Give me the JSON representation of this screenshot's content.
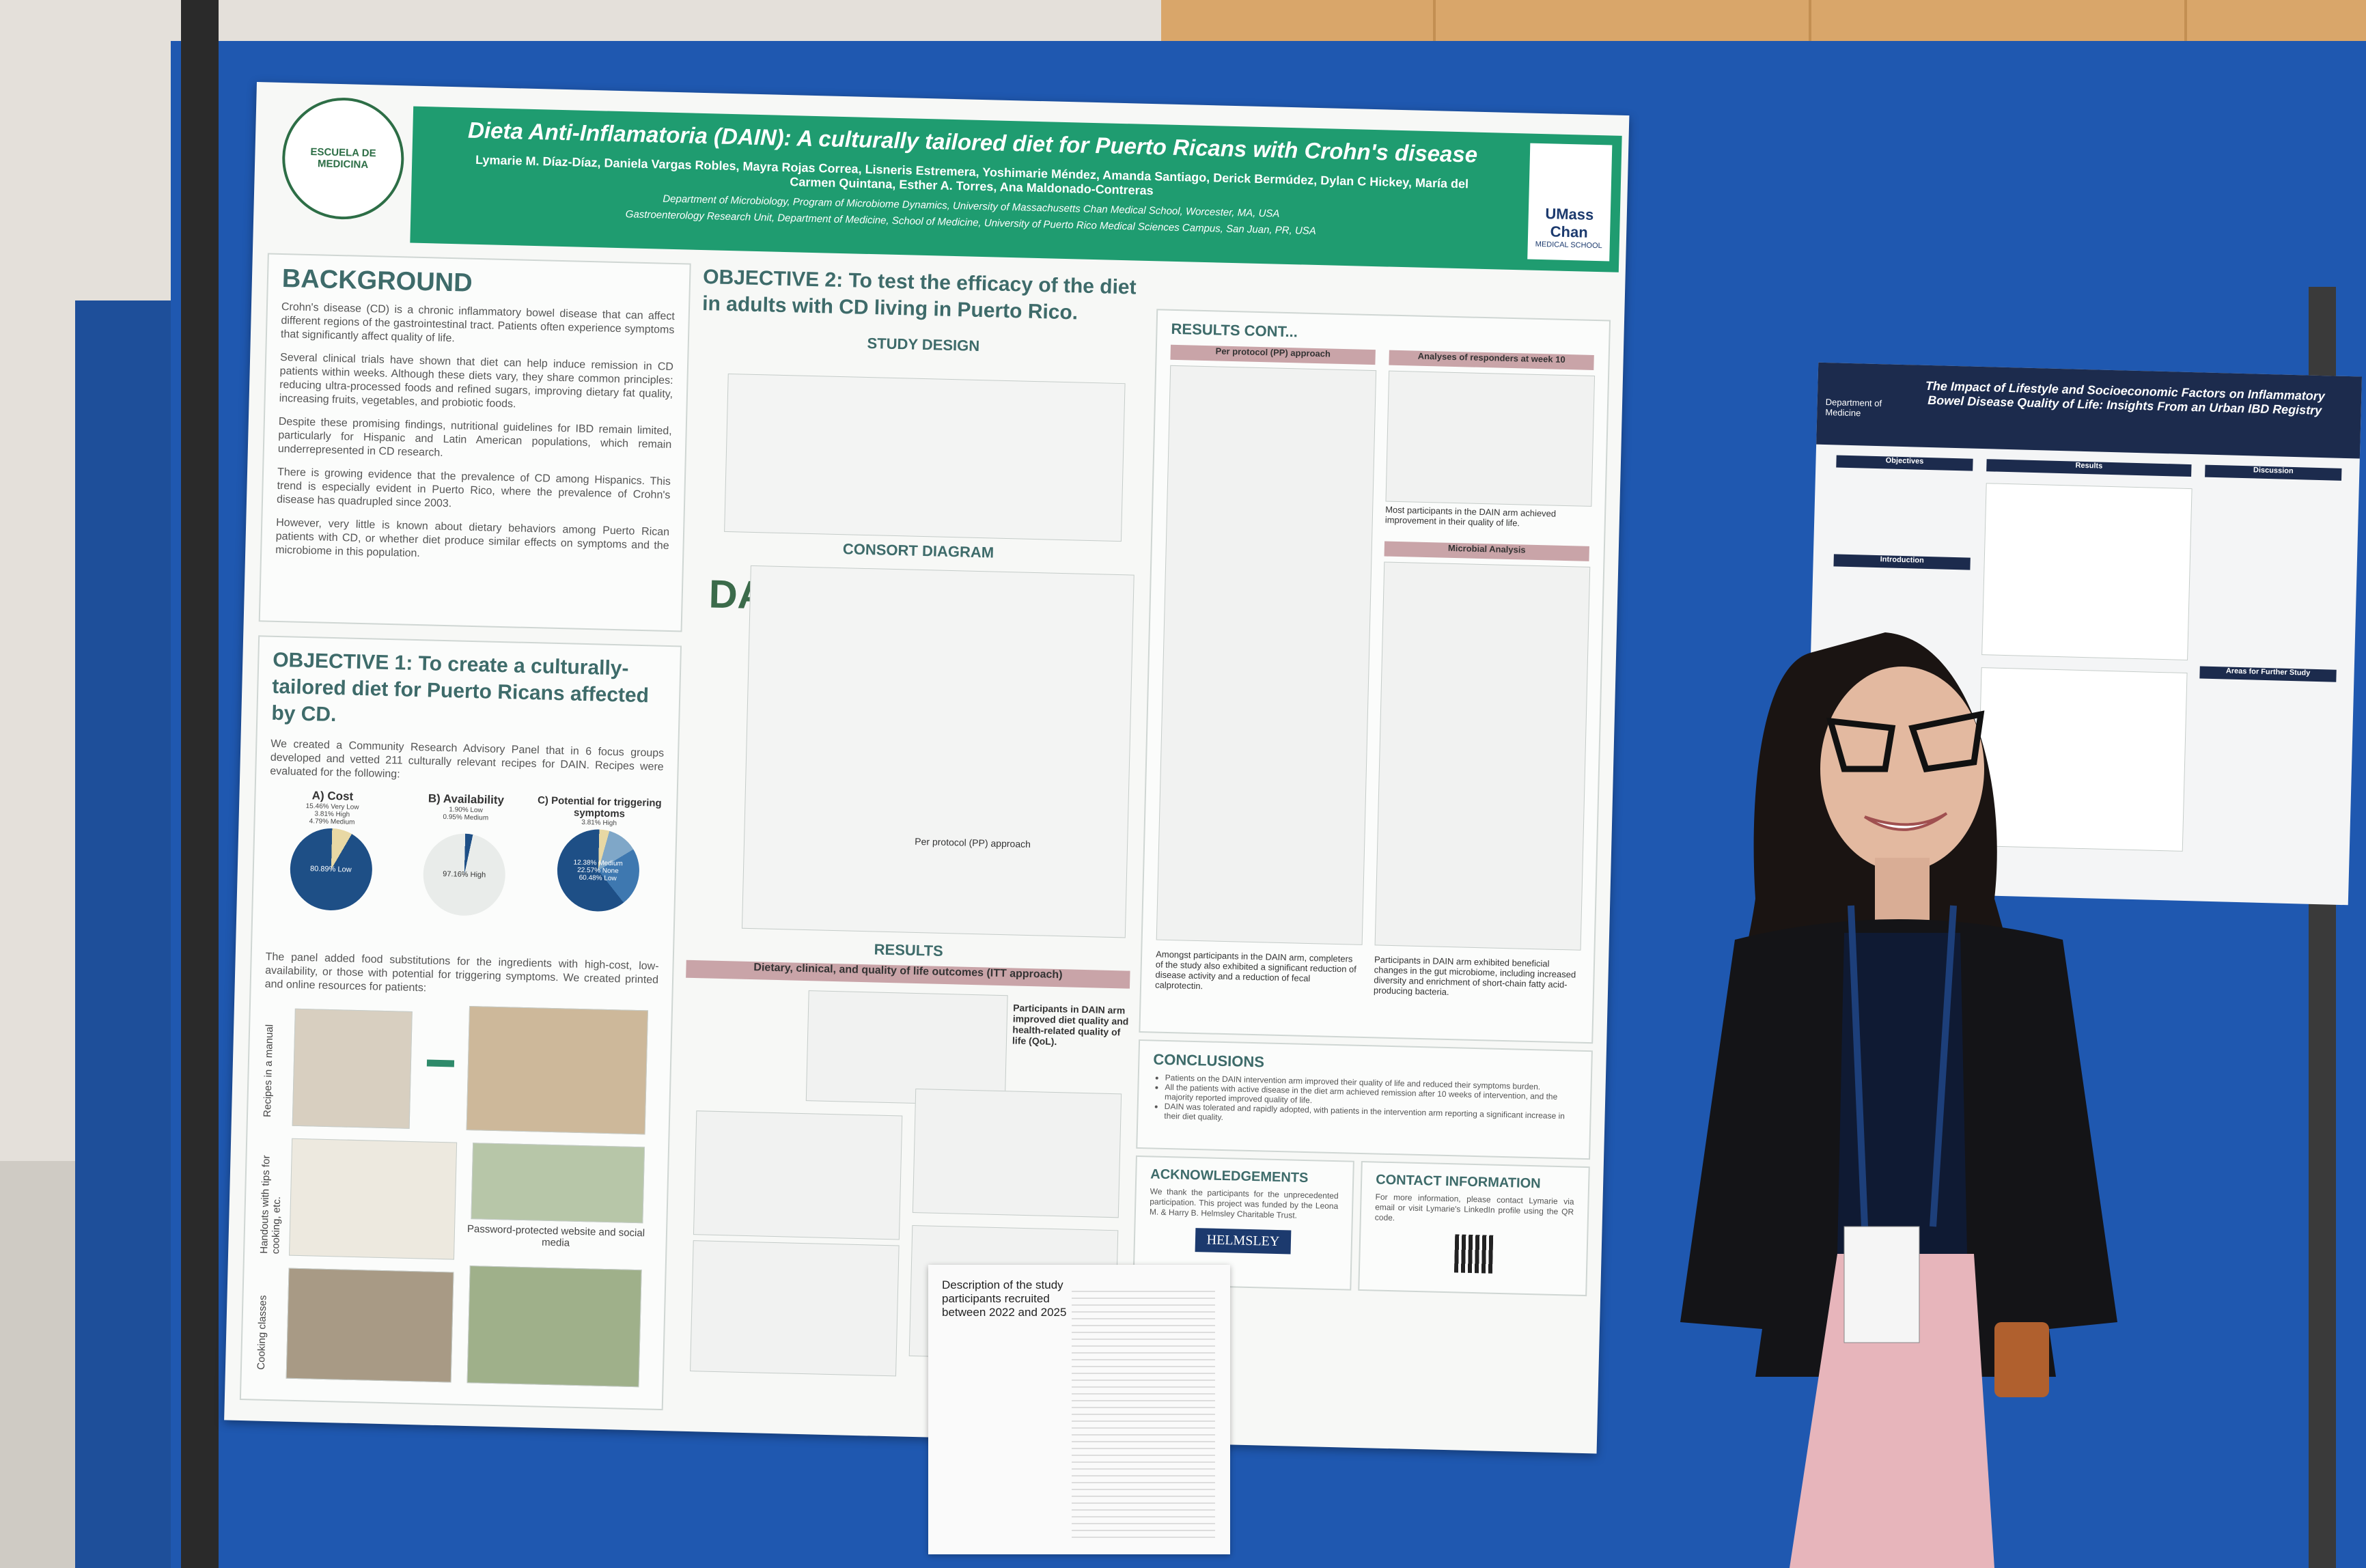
{
  "main_poster": {
    "title": "Dieta Anti-Inflamatoria (DAIN): A culturally tailored diet for Puerto Ricans with Crohn's disease",
    "authors": "Lymarie M. Díaz-Díaz, Daniela Vargas Robles, Mayra Rojas Correa, Lisneris Estremera, Yoshimarie Méndez, Amanda Santiago, Derick Bermúdez, Dylan C Hickey, María del Carmen Quintana, Esther A. Torres, Ana Maldonado-Contreras",
    "affiliations": [
      "Department of Microbiology, Program of Microbiome Dynamics, University of Massachusetts Chan Medical School, Worcester, MA, USA",
      "Gastroenterology Research Unit, Department of Medicine, School of Medicine, University of Puerto Rico Medical Sciences Campus, San Juan, PR, USA"
    ],
    "logo_left": "ESCUELA DE MEDICINA",
    "logo_right": "UMass Chan",
    "logo_right_sub": "MEDICAL SCHOOL",
    "background": {
      "heading": "BACKGROUND",
      "paragraphs": [
        "Crohn's disease (CD) is a chronic inflammatory bowel disease that can affect different regions of the gastrointestinal tract. Patients often experience symptoms that significantly affect quality of life.",
        "Several clinical trials have shown that diet can help induce remission in CD patients within weeks. Although these diets vary, they share common principles: reducing ultra-processed foods and refined sugars, improving dietary fat quality, increasing fruits, vegetables, and probiotic foods.",
        "Despite these promising findings, nutritional guidelines for IBD remain limited, particularly for Hispanic and Latin American populations, which remain underrepresented in CD research.",
        "There is growing evidence that the prevalence of CD among Hispanics. This trend is especially evident in Puerto Rico, where the prevalence of Crohn's disease has quadrupled since 2003.",
        "However, very little is known about dietary behaviors among Puerto Rican patients with CD, or whether diet produce similar effects on symptoms and the microbiome in this population."
      ]
    },
    "objective1": {
      "heading": "OBJECTIVE 1: To create a culturally-tailored diet for Puerto Ricans affected by CD.",
      "text": "We created a Community Research Advisory Panel that in 6 focus groups developed and vetted 211 culturally relevant recipes for DAIN. Recipes were evaluated for the following:",
      "pies": [
        {
          "label": "A) Cost",
          "slices": [
            "15.46% Very Low",
            "3.81% High",
            "4.79% Medium",
            "80.89% Low"
          ]
        },
        {
          "label": "B) Availability",
          "slices": [
            "1.90% Low",
            "0.95% Medium",
            "97.16% High"
          ]
        },
        {
          "label": "C) Potential for triggering symptoms",
          "slices": [
            "3.81% High",
            "12.38% Medium",
            "22.57% None",
            "60.48% Low"
          ]
        }
      ],
      "text2": "The panel added food substitutions for the ingredients with high-cost, low-availability, or those with potential for triggering symptoms. We created printed and online resources for patients:",
      "resources": [
        "Recipes in a manual",
        "Handouts with tips for cooking, etc.",
        "Cooking classes",
        "Password-protected website and social media"
      ]
    },
    "objective2": {
      "heading": "OBJECTIVE 2: To test the efficacy of the diet in adults with CD living in Puerto Rico.",
      "study_design": "STUDY DESIGN",
      "consort": "CONSORT DIAGRAM",
      "results": "RESULTS",
      "results_bar": "Dietary, clinical, and quality of life outcomes (ITT approach)",
      "results_note": "Participants in DAIN arm improved diet quality and health-related quality of life (QoL).",
      "pp_label": "Per protocol (PP) approach"
    },
    "results_cont": {
      "heading": "RESULTS CONT...",
      "pp": "Per protocol (PP) approach",
      "responders": "Analyses of responders at week 10",
      "responders_note": "Most participants in the DAIN arm achieved improvement in their quality of life.",
      "microbial": "Microbial Analysis",
      "left_note": "Amongst participants in the DAIN arm, completers of the study also exhibited a significant reduction of disease activity and a reduction of fecal calprotectin.",
      "right_note": "Participants in DAIN arm exhibited beneficial changes in the gut microbiome, including increased diversity and enrichment of short-chain fatty acid-producing bacteria."
    },
    "conclusions": {
      "heading": "CONCLUSIONS",
      "items": [
        "Patients on the DAIN intervention arm improved their quality of life and reduced their symptoms burden.",
        "All the patients with active disease in the diet arm achieved remission after 10 weeks of intervention, and the majority reported improved quality of life.",
        "DAIN was tolerated and rapidly adopted, with patients in the intervention arm reporting a significant increase in their diet quality."
      ]
    },
    "acknowledgements": {
      "heading": "ACKNOWLEDGEMENTS",
      "text": "We thank the participants for the unprecedented participation. This project was funded by the Leona M. & Harry B. Helmsley Charitable Trust.",
      "logo": "HELMSLEY"
    },
    "contact": {
      "heading": "CONTACT INFORMATION",
      "text": "For more information, please contact Lymarie via email or visit Lymarie's LinkedIn profile using the QR code."
    }
  },
  "side_poster": {
    "dept": "Department of Medicine",
    "title": "The Impact of Lifestyle and Socioeconomic Factors on Inflammatory Bowel Disease Quality of Life: Insights From an Urban IBD Registry",
    "sections": [
      "Objectives",
      "Results",
      "Discussion",
      "Introduction",
      "Areas for Further Study"
    ]
  },
  "description_sheet": {
    "title": "Description of the study participants recruited between 2022 and 2025"
  }
}
